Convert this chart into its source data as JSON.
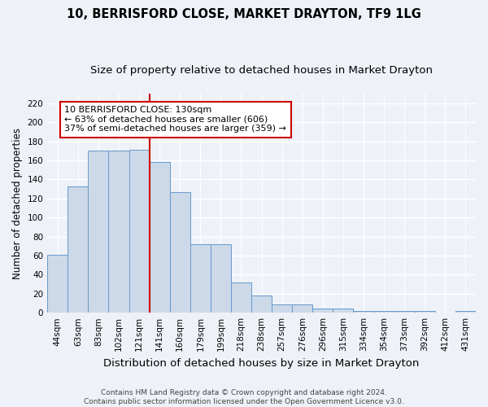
{
  "title": "10, BERRISFORD CLOSE, MARKET DRAYTON, TF9 1LG",
  "subtitle": "Size of property relative to detached houses in Market Drayton",
  "xlabel": "Distribution of detached houses by size in Market Drayton",
  "ylabel": "Number of detached properties",
  "categories": [
    "44sqm",
    "63sqm",
    "83sqm",
    "102sqm",
    "121sqm",
    "141sqm",
    "160sqm",
    "179sqm",
    "199sqm",
    "218sqm",
    "238sqm",
    "257sqm",
    "276sqm",
    "296sqm",
    "315sqm",
    "334sqm",
    "354sqm",
    "373sqm",
    "392sqm",
    "412sqm",
    "431sqm"
  ],
  "values": [
    61,
    133,
    170,
    170,
    171,
    158,
    127,
    72,
    72,
    32,
    18,
    9,
    9,
    4,
    4,
    2,
    2,
    2,
    2,
    0,
    2
  ],
  "bar_color": "#ccd9e8",
  "bar_edge_color": "#6699cc",
  "bar_edge_width": 0.7,
  "reference_line_x": 4.5,
  "reference_line_color": "#cc0000",
  "annotation_line1": "10 BERRISFORD CLOSE: 130sqm",
  "annotation_line2": "← 63% of detached houses are smaller (606)",
  "annotation_line3": "37% of semi-detached houses are larger (359) →",
  "ylim": [
    0,
    230
  ],
  "yticks": [
    0,
    20,
    40,
    60,
    80,
    100,
    120,
    140,
    160,
    180,
    200,
    220
  ],
  "background_color": "#eef2f8",
  "grid_color": "#ffffff",
  "footer": "Contains HM Land Registry data © Crown copyright and database right 2024.\nContains public sector information licensed under the Open Government Licence v3.0.",
  "title_fontsize": 10.5,
  "subtitle_fontsize": 9.5,
  "xlabel_fontsize": 9.5,
  "ylabel_fontsize": 8.5,
  "tick_fontsize": 7.5,
  "annotation_fontsize": 8,
  "footer_fontsize": 6.5
}
